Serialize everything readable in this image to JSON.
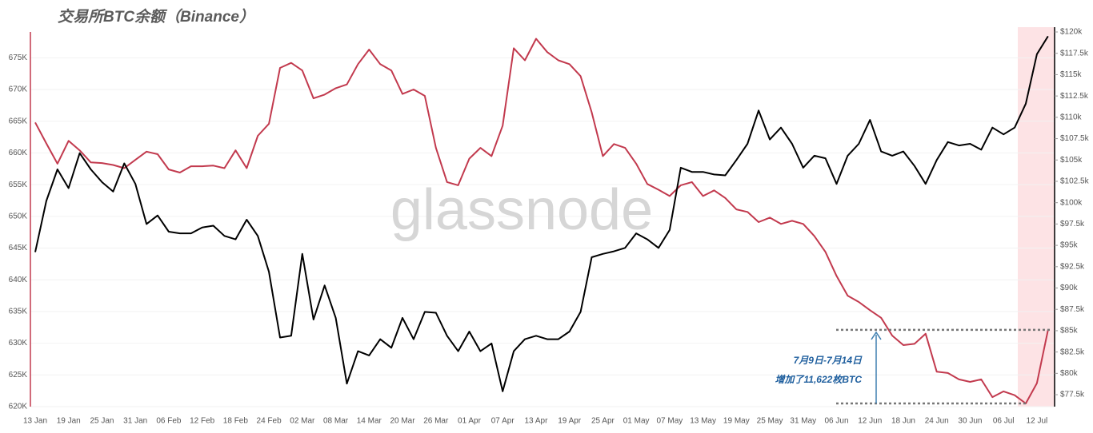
{
  "chart_data": {
    "type": "line",
    "title": "交易所BTC余额（Binance）",
    "watermark": "glassnode",
    "annotation": [
      "7月9日-7月14日",
      "增加了11,622枚BTC"
    ],
    "categories": [
      "13 Jan",
      null,
      null,
      "19 Jan",
      null,
      null,
      "25 Jan",
      null,
      null,
      "31 Jan",
      null,
      null,
      "06 Feb",
      null,
      null,
      "12 Feb",
      null,
      null,
      "18 Feb",
      null,
      null,
      "24 Feb",
      null,
      null,
      "02 Mar",
      null,
      null,
      "08 Mar",
      null,
      null,
      "14 Mar",
      null,
      null,
      "20 Mar",
      null,
      null,
      "26 Mar",
      null,
      null,
      "01 Apr",
      null,
      null,
      "07 Apr",
      null,
      null,
      "13 Apr",
      null,
      null,
      "19 Apr",
      null,
      null,
      "25 Apr",
      null,
      null,
      "01 May",
      null,
      null,
      "07 May",
      null,
      null,
      "13 May",
      null,
      null,
      "19 May",
      null,
      null,
      "25 May",
      null,
      null,
      "31 May",
      null,
      null,
      "06 Jun",
      null,
      null,
      "12 Jun",
      null,
      null,
      "18 Jun",
      null,
      null,
      "24 Jun",
      null,
      null,
      "30 Jun",
      null,
      null,
      "06 Jul",
      null,
      null,
      "12 Jul",
      null
    ],
    "series": [
      {
        "color": "#c23a4e",
        "values": [
          664800,
          661500,
          658300,
          661900,
          660400,
          658500,
          658400,
          658100,
          657600,
          658900,
          660200,
          659800,
          657400,
          656900,
          657900,
          657900,
          658000,
          657600,
          660400,
          657600,
          662700,
          664600,
          673400,
          674200,
          673000,
          668600,
          669200,
          670200,
          670800,
          674000,
          676300,
          674000,
          673000,
          669300,
          670000,
          669000,
          660800,
          655400,
          654900,
          659100,
          660800,
          659500,
          664300,
          676500,
          674600,
          678000,
          675900,
          674600,
          674000,
          672100,
          666400,
          659500,
          661400,
          660800,
          658300,
          655100,
          654200,
          653200,
          654900,
          655400,
          653200,
          654100,
          652900,
          651100,
          650700,
          649100,
          649800,
          648800,
          649300,
          648800,
          646900,
          644400,
          640600,
          637500,
          636500,
          635200,
          634000,
          631200,
          629700,
          629900,
          631500,
          625500,
          625300,
          624300,
          623900,
          624300,
          621500,
          622400,
          621800,
          620500,
          623700,
          632100
        ]
      },
      {
        "color": "#000000",
        "axis": "y2",
        "values": [
          94200,
          100200,
          103900,
          101700,
          105800,
          103900,
          102400,
          101300,
          104600,
          102200,
          97500,
          98500,
          96600,
          96400,
          96400,
          97100,
          97300,
          96100,
          95700,
          98000,
          96100,
          91900,
          84200,
          84400,
          94000,
          86300,
          90300,
          86500,
          78800,
          82600,
          82100,
          84000,
          83000,
          86500,
          84000,
          87200,
          87100,
          84400,
          82600,
          84900,
          82600,
          83500,
          77900,
          82600,
          84000,
          84400,
          84000,
          84000,
          84900,
          87200,
          93600,
          94000,
          94300,
          94700,
          96400,
          95700,
          94700,
          96800,
          104100,
          103600,
          103600,
          103300,
          103200,
          105000,
          106900,
          110800,
          107400,
          108800,
          106900,
          104100,
          105500,
          105200,
          102200,
          105500,
          106900,
          109700,
          106000,
          105500,
          106000,
          104300,
          102200,
          105000,
          107100,
          106700,
          106900,
          106200,
          108800,
          108000,
          108800,
          111600,
          117400,
          119500
        ]
      }
    ],
    "ylim": [
      620000,
      679700
    ],
    "yticks": [
      {
        "value": 620000,
        "label": "620K"
      },
      {
        "value": 625000,
        "label": "625K"
      },
      {
        "value": 630000,
        "label": "630K"
      },
      {
        "value": 635000,
        "label": "635K"
      },
      {
        "value": 640000,
        "label": "640K"
      },
      {
        "value": 645000,
        "label": "645K"
      },
      {
        "value": 650000,
        "label": "650K"
      },
      {
        "value": 655000,
        "label": "655K"
      },
      {
        "value": 660000,
        "label": "660K"
      },
      {
        "value": 665000,
        "label": "665K"
      },
      {
        "value": 670000,
        "label": "670K"
      },
      {
        "value": 675000,
        "label": "675K"
      }
    ],
    "y2lim": [
      76100,
      120470
    ],
    "y2ticks": [
      {
        "value": 77500,
        "label": "$77.5k"
      },
      {
        "value": 80000,
        "label": "$80k"
      },
      {
        "value": 82500,
        "label": "$82.5k"
      },
      {
        "value": 85000,
        "label": "$85k"
      },
      {
        "value": 87500,
        "label": "$87.5k"
      },
      {
        "value": 90000,
        "label": "$90k"
      },
      {
        "value": 92500,
        "label": "$92.5k"
      },
      {
        "value": 95000,
        "label": "$95k"
      },
      {
        "value": 97500,
        "label": "$97.5k"
      },
      {
        "value": 100000,
        "label": "$100k"
      },
      {
        "value": 102500,
        "label": "$102.5k"
      },
      {
        "value": 105000,
        "label": "$105k"
      },
      {
        "value": 107500,
        "label": "$107.5k"
      },
      {
        "value": 110000,
        "label": "$110k"
      },
      {
        "value": 112500,
        "label": "$112.5k"
      },
      {
        "value": 115000,
        "label": "$115k"
      },
      {
        "value": 117500,
        "label": "$117.5k"
      },
      {
        "value": 120000,
        "label": "$120k"
      }
    ],
    "grid": true
  }
}
